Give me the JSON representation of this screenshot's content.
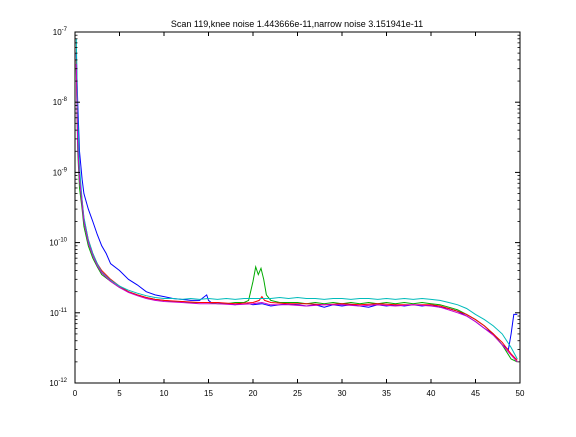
{
  "chart_data": {
    "type": "line",
    "title": "Scan 119,knee noise 1.443666e-11,narrow noise 3.151941e-11",
    "xlabel": "",
    "ylabel": "",
    "xlim": [
      0,
      50
    ],
    "ylim": [
      1e-12,
      1e-07
    ],
    "yscale": "log",
    "grid": false,
    "x_ticks": [
      "0",
      "5",
      "10",
      "15",
      "20",
      "25",
      "30",
      "35",
      "40",
      "45",
      "50"
    ],
    "y_ticks": [
      {
        "mantissa": "10",
        "exponent": "-12",
        "value": 1e-12
      },
      {
        "mantissa": "10",
        "exponent": "-11",
        "value": 1e-11
      },
      {
        "mantissa": "10",
        "exponent": "-10",
        "value": 1e-10
      },
      {
        "mantissa": "10",
        "exponent": "-9",
        "value": 1e-09
      },
      {
        "mantissa": "10",
        "exponent": "-8",
        "value": 1e-08
      },
      {
        "mantissa": "10",
        "exponent": "-7",
        "value": 1e-07
      }
    ],
    "series": [
      {
        "color": "#0000ff",
        "x": [
          0.15,
          0.3,
          0.5,
          0.8,
          1,
          1.5,
          2,
          2.5,
          3,
          3.5,
          4,
          5,
          6,
          7,
          8,
          9,
          10,
          11,
          12,
          13,
          14,
          14.8,
          15,
          15.3,
          16,
          17,
          18,
          19,
          20,
          21,
          22,
          23,
          24,
          25,
          26,
          27,
          28,
          29,
          30,
          31,
          32,
          33,
          34,
          35,
          36,
          37,
          38,
          39,
          40,
          41,
          42,
          43,
          44,
          45,
          46,
          47,
          48,
          48.7,
          49,
          49.3,
          49.7
        ],
        "y": [
          5e-08,
          1e-08,
          2e-09,
          8e-10,
          5e-10,
          3e-10,
          2e-10,
          1.3e-10,
          9e-11,
          7e-11,
          5e-11,
          4e-11,
          3e-11,
          2.5e-11,
          2e-11,
          1.8e-11,
          1.7e-11,
          1.6e-11,
          1.55e-11,
          1.5e-11,
          1.5e-11,
          1.8e-11,
          1.5e-11,
          1.4e-11,
          1.4e-11,
          1.35e-11,
          1.3e-11,
          1.4e-11,
          1.3e-11,
          1.35e-11,
          1.25e-11,
          1.3e-11,
          1.35e-11,
          1.3e-11,
          1.25e-11,
          1.3e-11,
          1.2e-11,
          1.3e-11,
          1.25e-11,
          1.3e-11,
          1.25e-11,
          1.2e-11,
          1.3e-11,
          1.25e-11,
          1.3e-11,
          1.25e-11,
          1.3e-11,
          1.25e-11,
          1.3e-11,
          1.2e-11,
          1.15e-11,
          1.05e-11,
          9e-12,
          7.5e-12,
          6e-12,
          5e-12,
          3.5e-12,
          3e-12,
          5e-12,
          9.5e-12,
          9.5e-12
        ]
      },
      {
        "color": "#00aa00",
        "x": [
          0.15,
          0.3,
          0.5,
          0.8,
          1,
          1.5,
          2,
          2.5,
          3,
          4,
          5,
          6,
          7,
          8,
          9,
          10,
          11,
          12,
          13,
          14,
          15,
          16,
          17,
          18,
          19,
          19.5,
          20,
          20.3,
          20.6,
          20.9,
          21.2,
          21.5,
          22,
          22.5,
          23,
          24,
          25,
          26,
          27,
          28,
          29,
          30,
          31,
          32,
          33,
          34,
          35,
          36,
          37,
          38,
          39,
          40,
          41,
          42,
          43,
          44,
          45,
          46,
          47,
          48,
          49,
          49.7
        ],
        "y": [
          3e-08,
          2e-09,
          6e-10,
          3e-10,
          1.7e-10,
          9e-11,
          6e-11,
          4.5e-11,
          3.5e-11,
          2.8e-11,
          2.3e-11,
          2e-11,
          1.8e-11,
          1.65e-11,
          1.55e-11,
          1.5e-11,
          1.45e-11,
          1.45e-11,
          1.4e-11,
          1.4e-11,
          1.4e-11,
          1.35e-11,
          1.35e-11,
          1.4e-11,
          1.4e-11,
          1.5e-11,
          2.8e-11,
          4.5e-11,
          3.5e-11,
          4.3e-11,
          3e-11,
          1.8e-11,
          1.5e-11,
          1.45e-11,
          1.4e-11,
          1.4e-11,
          1.4e-11,
          1.35e-11,
          1.4e-11,
          1.35e-11,
          1.4e-11,
          1.35e-11,
          1.4e-11,
          1.35e-11,
          1.4e-11,
          1.35e-11,
          1.4e-11,
          1.35e-11,
          1.4e-11,
          1.35e-11,
          1.4e-11,
          1.35e-11,
          1.3e-11,
          1.2e-11,
          1.1e-11,
          9.5e-12,
          8e-12,
          6.5e-12,
          5e-12,
          3.5e-12,
          2.2e-12,
          2e-12
        ]
      },
      {
        "color": "#ff0000",
        "x": [
          0.15,
          0.3,
          0.5,
          0.8,
          1,
          1.5,
          2,
          2.5,
          3,
          4,
          5,
          6,
          7,
          8,
          9,
          10,
          12,
          14,
          16,
          18,
          20,
          20.7,
          21,
          21.3,
          22,
          24,
          26,
          28,
          30,
          32,
          34,
          36,
          38,
          40,
          41,
          42,
          43,
          44,
          45,
          46,
          47,
          48,
          49,
          49.7
        ],
        "y": [
          4e-08,
          3e-09,
          9e-10,
          4e-10,
          2.2e-10,
          1.1e-10,
          7e-11,
          5e-11,
          4e-11,
          3e-11,
          2.4e-11,
          2e-11,
          1.8e-11,
          1.65e-11,
          1.55e-11,
          1.5e-11,
          1.45e-11,
          1.4e-11,
          1.4e-11,
          1.35e-11,
          1.4e-11,
          1.5e-11,
          1.7e-11,
          1.5e-11,
          1.4e-11,
          1.35e-11,
          1.35e-11,
          1.3e-11,
          1.35e-11,
          1.3e-11,
          1.35e-11,
          1.3e-11,
          1.3e-11,
          1.3e-11,
          1.25e-11,
          1.15e-11,
          1.05e-11,
          9.5e-12,
          8e-12,
          6.5e-12,
          5e-12,
          3.8e-12,
          2.6e-12,
          2.1e-12
        ]
      },
      {
        "color": "#00bbbb",
        "x": [
          0.15,
          0.3,
          0.5,
          0.8,
          1,
          1.5,
          2,
          2.5,
          3,
          4,
          5,
          6,
          7,
          8,
          9,
          10,
          11,
          12,
          13,
          14,
          15,
          16,
          17,
          18,
          19,
          20,
          21,
          22,
          23,
          24,
          25,
          26,
          27,
          28,
          29,
          30,
          31,
          32,
          33,
          34,
          35,
          36,
          37,
          38,
          39,
          40,
          41,
          42,
          43,
          44,
          45,
          46,
          47,
          48,
          49,
          49.7
        ],
        "y": [
          8e-08,
          6e-09,
          1.2e-09,
          4e-10,
          2.3e-10,
          1.1e-10,
          7e-11,
          5e-11,
          3.8e-11,
          2.9e-11,
          2.4e-11,
          2.1e-11,
          1.9e-11,
          1.75e-11,
          1.65e-11,
          1.6e-11,
          1.6e-11,
          1.55e-11,
          1.6e-11,
          1.55e-11,
          1.6e-11,
          1.55e-11,
          1.6e-11,
          1.55e-11,
          1.6e-11,
          1.6e-11,
          1.6e-11,
          1.6e-11,
          1.65e-11,
          1.6e-11,
          1.65e-11,
          1.6e-11,
          1.6e-11,
          1.55e-11,
          1.6e-11,
          1.6e-11,
          1.55e-11,
          1.6e-11,
          1.6e-11,
          1.55e-11,
          1.6e-11,
          1.55e-11,
          1.6e-11,
          1.55e-11,
          1.6e-11,
          1.55e-11,
          1.5e-11,
          1.4e-11,
          1.3e-11,
          1.15e-11,
          9.5e-12,
          8e-12,
          6.5e-12,
          5e-12,
          3.2e-12,
          2.2e-12
        ]
      },
      {
        "color": "#cc00cc",
        "x": [
          0.15,
          0.3,
          0.5,
          0.8,
          1,
          1.5,
          2,
          2.5,
          3,
          4,
          5,
          6,
          7,
          8,
          9,
          10,
          12,
          14,
          16,
          18,
          20,
          21,
          22,
          24,
          26,
          28,
          30,
          32,
          34,
          36,
          38,
          40,
          41,
          42,
          43,
          44,
          45,
          46,
          47,
          48,
          49,
          49.7
        ],
        "y": [
          3.5e-08,
          2.5e-09,
          8e-10,
          3.5e-10,
          2e-10,
          1e-10,
          6.5e-11,
          4.7e-11,
          3.7e-11,
          2.8e-11,
          2.3e-11,
          1.95e-11,
          1.75e-11,
          1.6e-11,
          1.5e-11,
          1.45e-11,
          1.4e-11,
          1.35e-11,
          1.35e-11,
          1.3e-11,
          1.35e-11,
          1.4e-11,
          1.3e-11,
          1.3e-11,
          1.25e-11,
          1.3e-11,
          1.3e-11,
          1.25e-11,
          1.3e-11,
          1.25e-11,
          1.3e-11,
          1.25e-11,
          1.2e-11,
          1.1e-11,
          1e-11,
          9e-12,
          7.5e-12,
          6e-12,
          4.8e-12,
          3.5e-12,
          2.5e-12,
          2e-12
        ]
      }
    ]
  }
}
